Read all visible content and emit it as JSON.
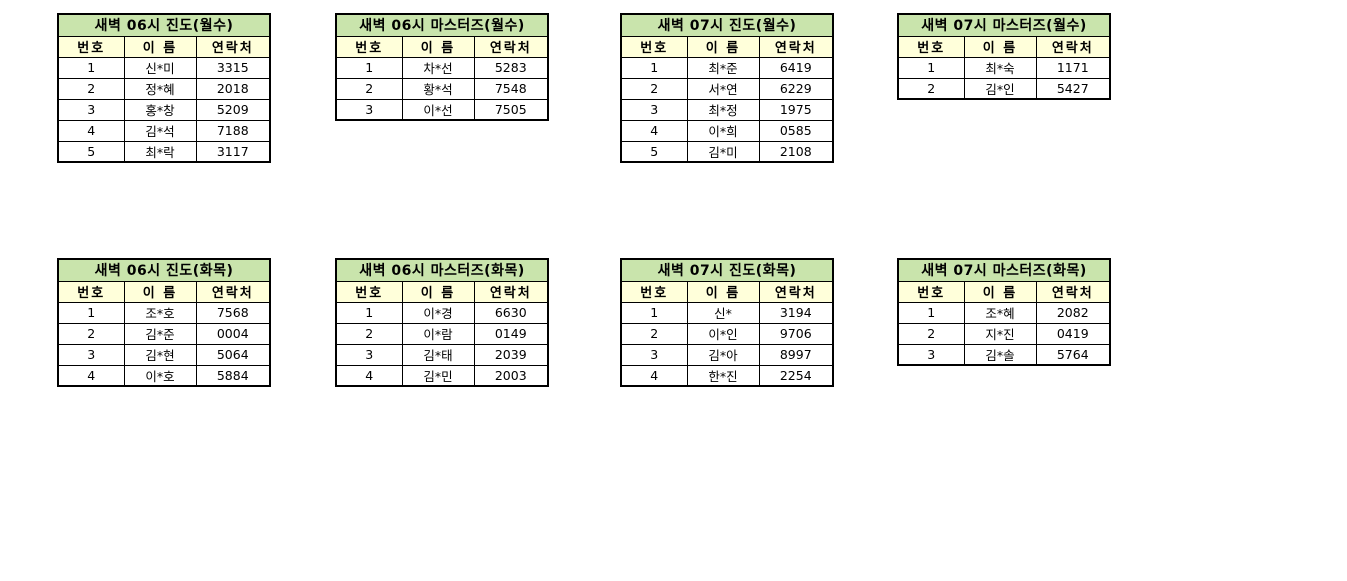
{
  "page": {
    "background": "#ffffff"
  },
  "theme": {
    "title_bg": "#c9e4ac",
    "header_bg": "#ffffda",
    "border_color": "#000000",
    "text_color": "#000000"
  },
  "columns": [
    "번호",
    "이 름",
    "연락처"
  ],
  "tables": [
    {
      "title": "새벽 06시 진도(월수)",
      "rows": [
        [
          "1",
          "신*미",
          "3315"
        ],
        [
          "2",
          "정*혜",
          "2018"
        ],
        [
          "3",
          "홍*창",
          "5209"
        ],
        [
          "4",
          "김*석",
          "7188"
        ],
        [
          "5",
          "최*락",
          "3117"
        ]
      ]
    },
    {
      "title": "새벽 06시 마스터즈(월수)",
      "rows": [
        [
          "1",
          "차*선",
          "5283"
        ],
        [
          "2",
          "황*석",
          "7548"
        ],
        [
          "3",
          "이*선",
          "7505"
        ]
      ]
    },
    {
      "title": "새벽 07시 진도(월수)",
      "rows": [
        [
          "1",
          "최*준",
          "6419"
        ],
        [
          "2",
          "서*연",
          "6229"
        ],
        [
          "3",
          "최*정",
          "1975"
        ],
        [
          "4",
          "이*희",
          "0585"
        ],
        [
          "5",
          "김*미",
          "2108"
        ]
      ]
    },
    {
      "title": "새벽 07시 마스터즈(월수)",
      "rows": [
        [
          "1",
          "최*숙",
          "1171"
        ],
        [
          "2",
          "김*인",
          "5427"
        ]
      ]
    },
    {
      "title": "새벽 06시 진도(화목)",
      "rows": [
        [
          "1",
          "조*호",
          "7568"
        ],
        [
          "2",
          "김*준",
          "0004"
        ],
        [
          "3",
          "김*현",
          "5064"
        ],
        [
          "4",
          "이*호",
          "5884"
        ]
      ]
    },
    {
      "title": "새벽 06시 마스터즈(화목)",
      "rows": [
        [
          "1",
          "이*경",
          "6630"
        ],
        [
          "2",
          "이*람",
          "0149"
        ],
        [
          "3",
          "김*태",
          "2039"
        ],
        [
          "4",
          "김*민",
          "2003"
        ]
      ]
    },
    {
      "title": "새벽 07시 진도(화목)",
      "rows": [
        [
          "1",
          "신*",
          "3194"
        ],
        [
          "2",
          "이*인",
          "9706"
        ],
        [
          "3",
          "김*아",
          "8997"
        ],
        [
          "4",
          "한*진",
          "2254"
        ]
      ]
    },
    {
      "title": "새벽 07시 마스터즈(화목)",
      "rows": [
        [
          "1",
          "조*혜",
          "2082"
        ],
        [
          "2",
          "지*진",
          "0419"
        ],
        [
          "3",
          "김*솔",
          "5764"
        ]
      ]
    }
  ]
}
